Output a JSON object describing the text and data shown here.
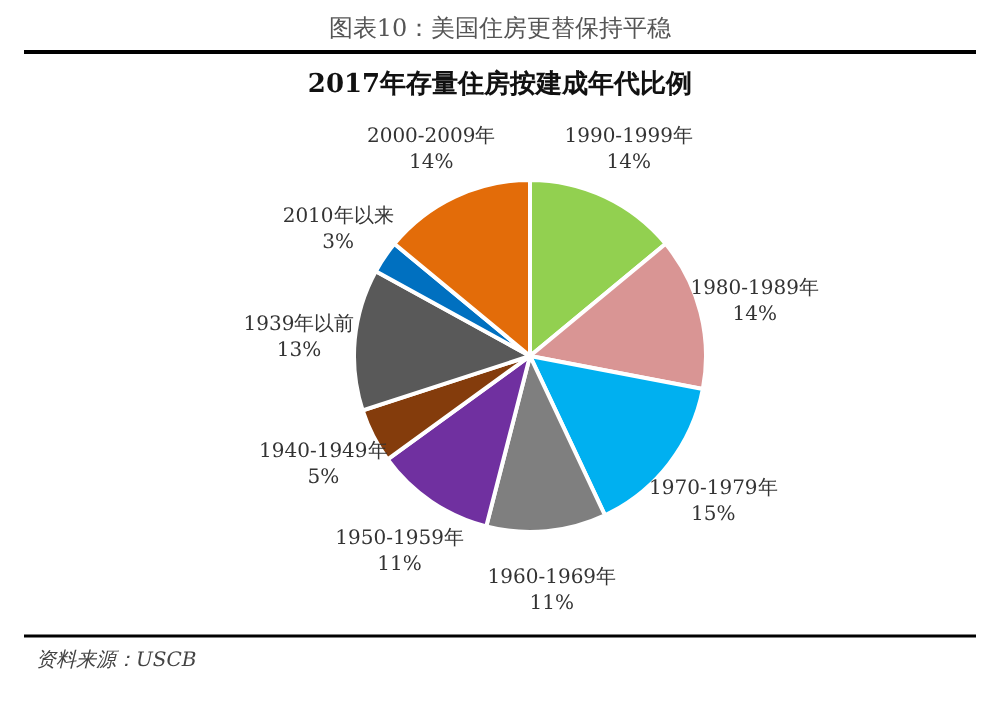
{
  "chart_data": {
    "type": "pie",
    "title": "图表10：美国住房更替保持平稳",
    "subtitle": "2017年存量住房按建成年代比例",
    "categories": [
      "1990-1999年",
      "1980-1989年",
      "1970-1979年",
      "1960-1969年",
      "1950-1959年",
      "1940-1949年",
      "1939年以前",
      "2010年以来",
      "2000-2009年"
    ],
    "values": [
      14,
      14,
      15,
      11,
      11,
      5,
      13,
      3,
      14
    ],
    "colors": [
      "#92d050",
      "#d99594",
      "#00b0f0",
      "#7f7f7f",
      "#7030a0",
      "#843c0c",
      "#595959",
      "#0070c0",
      "#e36c09"
    ],
    "value_labels": [
      "14%",
      "14%",
      "15%",
      "11%",
      "11%",
      "5%",
      "13%",
      "3%",
      "14%"
    ],
    "annotations": [
      "资料来源：USCB"
    ]
  }
}
